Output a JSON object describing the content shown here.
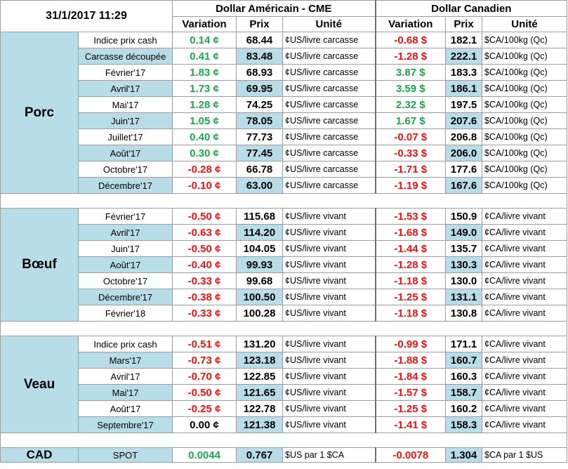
{
  "header": {
    "date": "31/1/2017 11:29",
    "usd_title": "Dollar Américain - CME",
    "cad_title": "Dollar Canadien",
    "col_variation": "Variation",
    "col_prix": "Prix",
    "col_unite": "Unité"
  },
  "groups": [
    {
      "name": "Porc",
      "rows": [
        {
          "label": "Indice prix cash",
          "us_var": "0.14 ¢",
          "us_sign": "pos",
          "us_price": "68.44",
          "us_unit": "¢US/livre carcasse",
          "ca_var": "-0.68 $",
          "ca_sign": "neg",
          "ca_price": "182.1",
          "ca_unit": "$CA/100kg (Qc)"
        },
        {
          "label": "Carcasse découpée",
          "us_var": "0.41 ¢",
          "us_sign": "pos",
          "us_price": "83.48",
          "us_unit": "¢US/livre carcasse",
          "ca_var": "-1.28 $",
          "ca_sign": "neg",
          "ca_price": "222.1",
          "ca_unit": "$CA/100kg (Qc)"
        },
        {
          "label": "Février'17",
          "us_var": "1.83 ¢",
          "us_sign": "pos",
          "us_price": "68.93",
          "us_unit": "¢US/livre carcasse",
          "ca_var": "3.87 $",
          "ca_sign": "pos",
          "ca_price": "183.3",
          "ca_unit": "$CA/100kg (Qc)"
        },
        {
          "label": "Avril'17",
          "us_var": "1.73 ¢",
          "us_sign": "pos",
          "us_price": "69.95",
          "us_unit": "¢US/livre carcasse",
          "ca_var": "3.59 $",
          "ca_sign": "pos",
          "ca_price": "186.1",
          "ca_unit": "$CA/100kg (Qc)"
        },
        {
          "label": "Mai'17",
          "us_var": "1.28 ¢",
          "us_sign": "pos",
          "us_price": "74.25",
          "us_unit": "¢US/livre carcasse",
          "ca_var": "2.32 $",
          "ca_sign": "pos",
          "ca_price": "197.5",
          "ca_unit": "$CA/100kg (Qc)"
        },
        {
          "label": "Juin'17",
          "us_var": "1.05 ¢",
          "us_sign": "pos",
          "us_price": "78.05",
          "us_unit": "¢US/livre carcasse",
          "ca_var": "1.67 $",
          "ca_sign": "pos",
          "ca_price": "207.6",
          "ca_unit": "$CA/100kg (Qc)"
        },
        {
          "label": "Juillet'17",
          "us_var": "0.40 ¢",
          "us_sign": "pos",
          "us_price": "77.73",
          "us_unit": "¢US/livre carcasse",
          "ca_var": "-0.07 $",
          "ca_sign": "neg",
          "ca_price": "206.8",
          "ca_unit": "$CA/100kg (Qc)"
        },
        {
          "label": "Août'17",
          "us_var": "0.30 ¢",
          "us_sign": "pos",
          "us_price": "77.45",
          "us_unit": "¢US/livre carcasse",
          "ca_var": "-0.33 $",
          "ca_sign": "neg",
          "ca_price": "206.0",
          "ca_unit": "$CA/100kg (Qc)"
        },
        {
          "label": "Octobre'17",
          "us_var": "-0.28 ¢",
          "us_sign": "neg",
          "us_price": "66.78",
          "us_unit": "¢US/livre carcasse",
          "ca_var": "-1.71 $",
          "ca_sign": "neg",
          "ca_price": "177.6",
          "ca_unit": "$CA/100kg (Qc)"
        },
        {
          "label": "Décembre'17",
          "us_var": "-0.10 ¢",
          "us_sign": "neg",
          "us_price": "63.00",
          "us_unit": "¢US/livre carcasse",
          "ca_var": "-1.19 $",
          "ca_sign": "neg",
          "ca_price": "167.6",
          "ca_unit": "$CA/100kg (Qc)"
        }
      ]
    },
    {
      "name": "Bœuf",
      "rows": [
        {
          "label": "Février'17",
          "us_var": "-0.50 ¢",
          "us_sign": "neg",
          "us_price": "115.68",
          "us_unit": "¢US/livre vivant",
          "ca_var": "-1.53 $",
          "ca_sign": "neg",
          "ca_price": "150.9",
          "ca_unit": "¢CA/livre vivant"
        },
        {
          "label": "Avril'17",
          "us_var": "-0.63 ¢",
          "us_sign": "neg",
          "us_price": "114.20",
          "us_unit": "¢US/livre vivant",
          "ca_var": "-1.68 $",
          "ca_sign": "neg",
          "ca_price": "149.0",
          "ca_unit": "¢CA/livre vivant"
        },
        {
          "label": "Juin'17",
          "us_var": "-0.50 ¢",
          "us_sign": "neg",
          "us_price": "104.05",
          "us_unit": "¢US/livre vivant",
          "ca_var": "-1.44 $",
          "ca_sign": "neg",
          "ca_price": "135.7",
          "ca_unit": "¢CA/livre vivant"
        },
        {
          "label": "Août'17",
          "us_var": "-0.40 ¢",
          "us_sign": "neg",
          "us_price": "99.93",
          "us_unit": "¢US/livre vivant",
          "ca_var": "-1.28 $",
          "ca_sign": "neg",
          "ca_price": "130.3",
          "ca_unit": "¢CA/livre vivant"
        },
        {
          "label": "Octobre'17",
          "us_var": "-0.33 ¢",
          "us_sign": "neg",
          "us_price": "99.68",
          "us_unit": "¢US/livre vivant",
          "ca_var": "-1.18 $",
          "ca_sign": "neg",
          "ca_price": "130.0",
          "ca_unit": "¢CA/livre vivant"
        },
        {
          "label": "Décembre'17",
          "us_var": "-0.38 ¢",
          "us_sign": "neg",
          "us_price": "100.50",
          "us_unit": "¢US/livre vivant",
          "ca_var": "-1.25 $",
          "ca_sign": "neg",
          "ca_price": "131.1",
          "ca_unit": "¢CA/livre vivant"
        },
        {
          "label": "Février'18",
          "us_var": "-0.33 ¢",
          "us_sign": "neg",
          "us_price": "100.28",
          "us_unit": "¢US/livre vivant",
          "ca_var": "-1.18 $",
          "ca_sign": "neg",
          "ca_price": "130.8",
          "ca_unit": "¢CA/livre vivant"
        }
      ]
    },
    {
      "name": "Veau",
      "rows": [
        {
          "label": "Indice prix cash",
          "us_var": "-0.51 ¢",
          "us_sign": "neg",
          "us_price": "131.20",
          "us_unit": "¢US/livre vivant",
          "ca_var": "-0.99 $",
          "ca_sign": "neg",
          "ca_price": "171.1",
          "ca_unit": "¢CA/livre vivant"
        },
        {
          "label": "Mars'17",
          "us_var": "-0.73 ¢",
          "us_sign": "neg",
          "us_price": "123.18",
          "us_unit": "¢US/livre vivant",
          "ca_var": "-1.88 $",
          "ca_sign": "neg",
          "ca_price": "160.7",
          "ca_unit": "¢CA/livre vivant"
        },
        {
          "label": "Avril'17",
          "us_var": "-0.70 ¢",
          "us_sign": "neg",
          "us_price": "122.85",
          "us_unit": "¢US/livre vivant",
          "ca_var": "-1.84 $",
          "ca_sign": "neg",
          "ca_price": "160.3",
          "ca_unit": "¢CA/livre vivant"
        },
        {
          "label": "Mai'17",
          "us_var": "-0.50 ¢",
          "us_sign": "neg",
          "us_price": "121.65",
          "us_unit": "¢US/livre vivant",
          "ca_var": "-1.57 $",
          "ca_sign": "neg",
          "ca_price": "158.7",
          "ca_unit": "¢CA/livre vivant"
        },
        {
          "label": "Août'17",
          "us_var": "-0.25 ¢",
          "us_sign": "neg",
          "us_price": "122.78",
          "us_unit": "¢US/livre vivant",
          "ca_var": "-1.25 $",
          "ca_sign": "neg",
          "ca_price": "160.2",
          "ca_unit": "¢CA/livre vivant"
        },
        {
          "label": "Septembre'17",
          "us_var": "0.00 ¢",
          "us_sign": "zero",
          "us_price": "121.38",
          "us_unit": "¢US/livre vivant",
          "ca_var": "-1.41 $",
          "ca_sign": "neg",
          "ca_price": "158.3",
          "ca_unit": "¢CA/livre vivant"
        }
      ]
    }
  ],
  "cad": {
    "name": "CAD",
    "label": "SPOT",
    "us_var": "0.0044",
    "us_sign": "pos",
    "us_price": "0.767",
    "us_unit": "$US par 1 $CA",
    "ca_var": "-0.0078",
    "ca_sign": "neg",
    "ca_price": "1.304",
    "ca_unit": "$CA par 1 $US"
  },
  "colors": {
    "shade": "#b7dde8",
    "positive": "#1aa84a",
    "negative": "#ee1111"
  }
}
